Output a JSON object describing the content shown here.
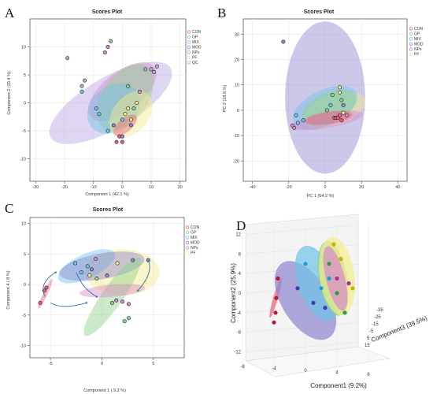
{
  "colors": {
    "CON": "#e8607a",
    "GP": "#8cd18a",
    "MIX": "#6fc3e8",
    "MOD": "#8d86cf",
    "NPs": "#d889c9",
    "PF": "#f4ec8c",
    "QC": "#b9a7df"
  },
  "chart_data": [
    {
      "panel": "A",
      "type": "scatter",
      "title": "Scores Plot",
      "xlabel": "Component 1 (42.1 %)",
      "ylabel": "Component 2 (20.4 %)",
      "xlim": [
        -32,
        22
      ],
      "ylim": [
        -14,
        15
      ],
      "xticks": [
        -30,
        -20,
        -10,
        0,
        10,
        20
      ],
      "yticks": [
        -10,
        -5,
        0,
        5,
        10
      ],
      "legend": [
        "CON",
        "GP",
        "MIX",
        "MOD",
        "NPs",
        "PF",
        "QC"
      ],
      "ellipses": [
        {
          "group": "QC",
          "cx": -4,
          "cy": 0,
          "rx": 24,
          "ry": 4.6,
          "angle": -30
        },
        {
          "group": "NPs",
          "cx": 0,
          "cy": 2,
          "rx": 14,
          "ry": 3.5,
          "angle": -38
        },
        {
          "group": "GP",
          "cx": 1,
          "cy": 1,
          "rx": 13,
          "ry": 4,
          "angle": -55
        },
        {
          "group": "MIX",
          "cx": -3,
          "cy": -1,
          "rx": 10,
          "ry": 4,
          "angle": -40
        },
        {
          "group": "PF",
          "cx": 3,
          "cy": -2,
          "rx": 9,
          "ry": 3.2,
          "angle": -50
        },
        {
          "group": "CON",
          "cx": 1,
          "cy": -4,
          "rx": 5,
          "ry": 1.2,
          "angle": -40
        }
      ],
      "points": [
        {
          "group": "QC",
          "x": -19,
          "y": 8
        },
        {
          "group": "QC",
          "x": -14,
          "y": 3
        },
        {
          "group": "QC",
          "x": -13,
          "y": 4
        },
        {
          "group": "QC",
          "x": 8,
          "y": 6
        },
        {
          "group": "QC",
          "x": 10,
          "y": 6
        },
        {
          "group": "QC",
          "x": 12,
          "y": 6.5
        },
        {
          "group": "QC",
          "x": 11,
          "y": 5.5
        },
        {
          "group": "NPs",
          "x": -6,
          "y": 9
        },
        {
          "group": "NPs",
          "x": -5,
          "y": 10
        },
        {
          "group": "GP",
          "x": -4,
          "y": 11
        },
        {
          "group": "GP",
          "x": 2,
          "y": 3
        },
        {
          "group": "MIX",
          "x": -14,
          "y": 2
        },
        {
          "group": "MIX",
          "x": -9,
          "y": -1
        },
        {
          "group": "MIX",
          "x": -8,
          "y": -2
        },
        {
          "group": "MIX",
          "x": -5,
          "y": -5
        },
        {
          "group": "MOD",
          "x": -3,
          "y": -4
        },
        {
          "group": "MOD",
          "x": 0,
          "y": -6
        },
        {
          "group": "MOD",
          "x": 3,
          "y": -4
        },
        {
          "group": "PF",
          "x": 1,
          "y": -2
        },
        {
          "group": "PF",
          "x": 2,
          "y": -1
        },
        {
          "group": "PF",
          "x": 3,
          "y": -3
        },
        {
          "group": "PF",
          "x": 5,
          "y": 0
        },
        {
          "group": "CON",
          "x": -2,
          "y": -7
        },
        {
          "group": "CON",
          "x": -1,
          "y": -6
        },
        {
          "group": "CON",
          "x": 0,
          "y": -7
        },
        {
          "group": "GP",
          "x": 4,
          "y": -1
        },
        {
          "group": "MIX",
          "x": 0,
          "y": -3
        },
        {
          "group": "NPs",
          "x": 6,
          "y": 2
        }
      ]
    },
    {
      "panel": "B",
      "type": "scatter",
      "title": "Scores Plot",
      "xlabel": "PC 1 (54.2 %)",
      "ylabel": "PC 2 (18.8 %)",
      "xlim": [
        -45,
        45
      ],
      "ylim": [
        -28,
        36
      ],
      "xticks": [
        -40,
        -20,
        0,
        20,
        40
      ],
      "yticks": [
        -20,
        -10,
        0,
        10,
        20,
        30
      ],
      "legend": [
        "CON",
        "GP",
        "MIX",
        "MOD",
        "NPs",
        "PF"
      ],
      "ellipses": [
        {
          "group": "MOD",
          "cx": 0,
          "cy": 5,
          "rx": 22,
          "ry": 30,
          "angle": 0
        },
        {
          "group": "PF",
          "cx": 5,
          "cy": 0,
          "rx": 18,
          "ry": 6,
          "angle": -20
        },
        {
          "group": "MIX",
          "cx": 0,
          "cy": 1,
          "rx": 19,
          "ry": 7,
          "angle": -25
        },
        {
          "group": "GP",
          "cx": 2,
          "cy": 1,
          "rx": 16,
          "ry": 6,
          "angle": -25
        },
        {
          "group": "NPs",
          "cx": 1,
          "cy": -4,
          "rx": 20,
          "ry": 3,
          "angle": -10
        },
        {
          "group": "CON",
          "cx": 2,
          "cy": -3,
          "rx": 13,
          "ry": 2.5,
          "angle": -8
        }
      ],
      "points": [
        {
          "group": "MOD",
          "x": -23,
          "y": 27
        },
        {
          "group": "PF",
          "x": 8,
          "y": 9
        },
        {
          "group": "PF",
          "x": 8,
          "y": 7
        },
        {
          "group": "GP",
          "x": 4,
          "y": 6
        },
        {
          "group": "GP",
          "x": 9,
          "y": 4
        },
        {
          "group": "MIX",
          "x": -16,
          "y": -2
        },
        {
          "group": "MIX",
          "x": -12,
          "y": -4
        },
        {
          "group": "NPs",
          "x": -18,
          "y": -6
        },
        {
          "group": "NPs",
          "x": -17,
          "y": -7
        },
        {
          "group": "MIX",
          "x": -15,
          "y": -5
        },
        {
          "group": "CON",
          "x": 5,
          "y": -3
        },
        {
          "group": "CON",
          "x": 6,
          "y": -3
        },
        {
          "group": "CON",
          "x": 7,
          "y": -3
        },
        {
          "group": "CON",
          "x": 8,
          "y": -2
        },
        {
          "group": "CON",
          "x": 9,
          "y": -4
        },
        {
          "group": "PF",
          "x": 10,
          "y": -1
        },
        {
          "group": "GP",
          "x": 1,
          "y": 0
        },
        {
          "group": "MIX",
          "x": 3,
          "y": 2
        },
        {
          "group": "MOD",
          "x": 10,
          "y": 2
        },
        {
          "group": "NPs",
          "x": 12,
          "y": -2
        }
      ]
    },
    {
      "panel": "C",
      "type": "scatter",
      "title": "Scores Plot",
      "xlabel": "Component 1 ( 9.2 %)",
      "ylabel": "Component 4 ( 8 %)",
      "xlim": [
        -7,
        8
      ],
      "ylim": [
        -12,
        11
      ],
      "xticks": [
        -5,
        0,
        5
      ],
      "yticks": [
        -10,
        -5,
        0,
        5,
        10
      ],
      "legend": [
        "CON",
        "GP",
        "MIX",
        "MOD",
        "NPs",
        "PF"
      ],
      "ellipses": [
        {
          "group": "PF",
          "cx": 2,
          "cy": 2,
          "rx": 3.6,
          "ry": 3.8,
          "angle": 0
        },
        {
          "group": "MIX",
          "cx": -1.5,
          "cy": 3,
          "rx": 3,
          "ry": 2,
          "angle": -25
        },
        {
          "group": "MOD",
          "cx": 0,
          "cy": 3,
          "rx": 4.2,
          "ry": 2.1,
          "angle": -10
        },
        {
          "group": "GP",
          "cx": 1,
          "cy": -2,
          "rx": 4.6,
          "ry": 1.7,
          "angle": -55
        },
        {
          "group": "NPs",
          "cx": 1,
          "cy": -1,
          "rx": 3.2,
          "ry": 1,
          "angle": -5
        },
        {
          "group": "CON",
          "cx": -5.5,
          "cy": -1.5,
          "rx": 1.6,
          "ry": 0.35,
          "angle": -65
        }
      ],
      "points": [
        {
          "group": "CON",
          "x": -6,
          "y": -3
        },
        {
          "group": "CON",
          "x": -5.6,
          "y": -1
        },
        {
          "group": "CON",
          "x": -5.4,
          "y": -0.5
        },
        {
          "group": "GP",
          "x": -0.5,
          "y": 1
        },
        {
          "group": "GP",
          "x": 2.2,
          "y": -6
        },
        {
          "group": "GP",
          "x": 2.6,
          "y": -5.5
        },
        {
          "group": "GP",
          "x": 1,
          "y": -3
        },
        {
          "group": "MIX",
          "x": -2.6,
          "y": 3.5
        },
        {
          "group": "MIX",
          "x": -2,
          "y": 2
        },
        {
          "group": "MIX",
          "x": -1.4,
          "y": 3
        },
        {
          "group": "MOD",
          "x": -1,
          "y": 2.5
        },
        {
          "group": "MOD",
          "x": 0.5,
          "y": 1.5
        },
        {
          "group": "MOD",
          "x": 3,
          "y": 4
        },
        {
          "group": "MOD",
          "x": 4.5,
          "y": 4
        },
        {
          "group": "NPs",
          "x": 1.4,
          "y": -2.6
        },
        {
          "group": "NPs",
          "x": 2,
          "y": -2.8
        },
        {
          "group": "NPs",
          "x": 2.6,
          "y": -3.2
        },
        {
          "group": "NPs",
          "x": -0.6,
          "y": 4.2
        },
        {
          "group": "PF",
          "x": -1.2,
          "y": 1.5
        },
        {
          "group": "PF",
          "x": 1.5,
          "y": 3.5
        }
      ]
    },
    {
      "panel": "D",
      "type": "scatter",
      "xlabel": "Component1 (9.2%)",
      "ylabel": "Component2 (25.9%)",
      "zlabel": "Component3 (39.5%)",
      "xticks": [
        -8,
        -4,
        0,
        4,
        8
      ],
      "yticks": [
        -12,
        -8,
        -4,
        0,
        4,
        8,
        12
      ],
      "zticks": [
        -35,
        -25,
        -15,
        -5,
        5,
        15
      ],
      "points": [
        {
          "group": "CON",
          "x": -4.5,
          "y": 3
        },
        {
          "group": "CON",
          "x": -4.7,
          "y": -1
        },
        {
          "group": "CON",
          "x": -4.8,
          "y": -4
        },
        {
          "group": "CON",
          "x": -5,
          "y": -6
        },
        {
          "group": "GP",
          "x": 2,
          "y": 6
        },
        {
          "group": "GP",
          "x": 3,
          "y": 0
        },
        {
          "group": "GP",
          "x": 4,
          "y": -4
        },
        {
          "group": "MIX",
          "x": -1,
          "y": 6
        },
        {
          "group": "MIX",
          "x": 1,
          "y": 1
        },
        {
          "group": "MIX",
          "x": 2,
          "y": 3
        },
        {
          "group": "MOD",
          "x": -2,
          "y": 1
        },
        {
          "group": "MOD",
          "x": 0,
          "y": -2
        },
        {
          "group": "MOD",
          "x": 1.5,
          "y": -3
        },
        {
          "group": "NPs",
          "x": 3,
          "y": 3
        },
        {
          "group": "NPs",
          "x": 4.5,
          "y": 2
        },
        {
          "group": "PF",
          "x": 2.6,
          "y": 10
        },
        {
          "group": "PF",
          "x": 3.5,
          "y": 7
        },
        {
          "group": "PF",
          "x": 5,
          "y": 1
        }
      ]
    }
  ]
}
